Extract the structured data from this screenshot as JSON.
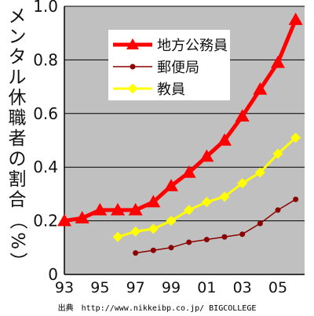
{
  "chart_data": {
    "type": "line",
    "ylabel": "メンタル休職者の割合（%）",
    "xlabel": "",
    "x_tick_labels": [
      "93",
      "95",
      "97",
      "99",
      "01",
      "03",
      "05"
    ],
    "y_tick_labels": [
      "0",
      "0.2",
      "0.4",
      "0.6",
      "0.8",
      "1.0"
    ],
    "xlim": [
      1993,
      2006.5
    ],
    "ylim": [
      0,
      1.0
    ],
    "grid": "horizontal",
    "legend_position": "top",
    "series": [
      {
        "name": "地方公務員",
        "color": "#ff0000",
        "marker": "triangle",
        "x": [
          1993,
          1994,
          1995,
          1996,
          1997,
          1998,
          1999,
          2000,
          2001,
          2002,
          2003,
          2004,
          2005,
          2006
        ],
        "y": [
          0.2,
          0.21,
          0.24,
          0.24,
          0.24,
          0.27,
          0.33,
          0.38,
          0.44,
          0.5,
          0.59,
          0.69,
          0.79,
          0.95
        ]
      },
      {
        "name": "郵便局",
        "color": "#8b0000",
        "marker": "circle",
        "x": [
          1997,
          1998,
          1999,
          2000,
          2001,
          2002,
          2003,
          2004,
          2005,
          2006
        ],
        "y": [
          0.08,
          0.09,
          0.1,
          0.12,
          0.13,
          0.14,
          0.15,
          0.19,
          0.24,
          0.28
        ]
      },
      {
        "name": "教員",
        "color": "#ffff00",
        "marker": "diamond",
        "x": [
          1996,
          1997,
          1998,
          1999,
          2000,
          2001,
          2002,
          2003,
          2004,
          2005,
          2006
        ],
        "y": [
          0.14,
          0.16,
          0.17,
          0.2,
          0.24,
          0.27,
          0.29,
          0.34,
          0.38,
          0.45,
          0.51
        ]
      }
    ]
  },
  "style": {
    "plot_background": "#c0c0c0",
    "grid_color": "#000000",
    "text_color": "#111111"
  },
  "source_text": "出典　http://www.nikkeibp.co.jp/ BIGCOLLEGE"
}
